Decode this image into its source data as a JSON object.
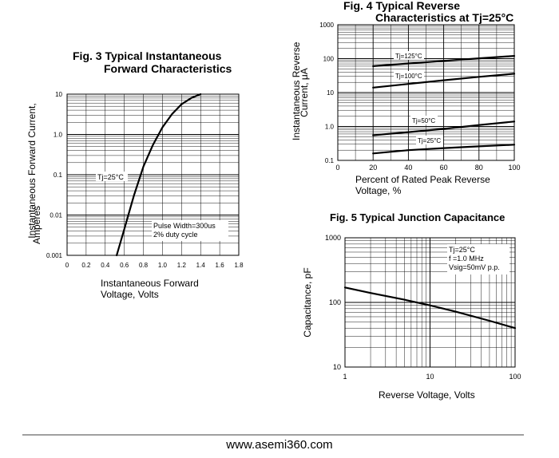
{
  "header_fragment": "                    ",
  "footer": {
    "url": "www.asemi360.com"
  },
  "chart_data": [
    {
      "id": "fig3",
      "type": "line",
      "title_line1": "Fig. 3 Typical Instantaneous",
      "title_line2": "Forward Characteristics",
      "xlabel_line1": "Instantaneous Forward",
      "xlabel_line2": "Voltage, Volts",
      "ylabel_line1": "Instantaneous Forward Current,",
      "ylabel_line2": "Amperes",
      "x_scale": "linear",
      "y_scale": "log",
      "xlim": [
        0,
        1.8
      ],
      "ylim": [
        0.001,
        10
      ],
      "x_ticks": [
        "0",
        "0.2",
        "0.4",
        "0.6",
        "0.8",
        "1.0",
        "1.2",
        "1.4",
        "1.6",
        "1.8"
      ],
      "y_ticks": [
        "0.001",
        "0.01",
        "0.1",
        "1.0",
        "10"
      ],
      "grid": true,
      "annotations": [
        "Tj=25°C",
        "Pulse Width=300us",
        "2% duty cycle"
      ],
      "series": [
        {
          "x": [
            0.52,
            0.6,
            0.7,
            0.8,
            0.9,
            1.0,
            1.1,
            1.2,
            1.3,
            1.4
          ],
          "y": [
            0.001,
            0.0045,
            0.03,
            0.16,
            0.55,
            1.5,
            3.2,
            5.6,
            8.0,
            10.0
          ]
        }
      ]
    },
    {
      "id": "fig4",
      "type": "line",
      "title_line1": "Fig. 4 Typical Reverse",
      "title_line2": "Characteristics at Tj=25°C",
      "xlabel_line1": "Percent of Rated Peak Reverse",
      "xlabel_line2": "Voltage, %",
      "ylabel_line1": "Instantaneous Reverse",
      "ylabel_line2": "Current, μA",
      "x_scale": "linear",
      "y_scale": "log",
      "xlim": [
        0,
        100
      ],
      "ylim": [
        0.1,
        1000
      ],
      "x_ticks": [
        "0",
        "20",
        "40",
        "60",
        "80",
        "100"
      ],
      "y_ticks": [
        "0.1",
        "1.0",
        "10",
        "100",
        "1000"
      ],
      "grid": true,
      "series": [
        {
          "name": "Tj=125°C",
          "x": [
            20,
            40,
            60,
            80,
            100
          ],
          "y": [
            60,
            72,
            86,
            102,
            120
          ]
        },
        {
          "name": "Tj=100°C",
          "x": [
            20,
            40,
            60,
            80,
            100
          ],
          "y": [
            14,
            18,
            23,
            29,
            36
          ]
        },
        {
          "name": "Tj=50°C",
          "x": [
            20,
            40,
            60,
            80,
            100
          ],
          "y": [
            0.55,
            0.68,
            0.85,
            1.1,
            1.4
          ]
        },
        {
          "name": "Tj=25°C",
          "x": [
            20,
            40,
            60,
            80,
            100
          ],
          "y": [
            0.16,
            0.2,
            0.23,
            0.26,
            0.29
          ]
        }
      ]
    },
    {
      "id": "fig5",
      "type": "line",
      "title_line1": "Fig. 5 Typical Junction Capacitance",
      "xlabel_line1": "Reverse Voltage, Volts",
      "ylabel_line1": "Capacitance, pF",
      "x_scale": "log",
      "y_scale": "log",
      "xlim": [
        1,
        100
      ],
      "ylim": [
        10,
        1000
      ],
      "x_ticks": [
        "1",
        "10",
        "100"
      ],
      "y_ticks": [
        "10",
        "100",
        "1000"
      ],
      "grid": true,
      "annotations": [
        "Tj=25°C",
        "f =1.0 MHz",
        "Vsig=50mV p.p."
      ],
      "series": [
        {
          "x": [
            1,
            2,
            5,
            10,
            20,
            50,
            100
          ],
          "y": [
            170,
            140,
            110,
            90,
            72,
            52,
            40
          ]
        }
      ]
    }
  ]
}
